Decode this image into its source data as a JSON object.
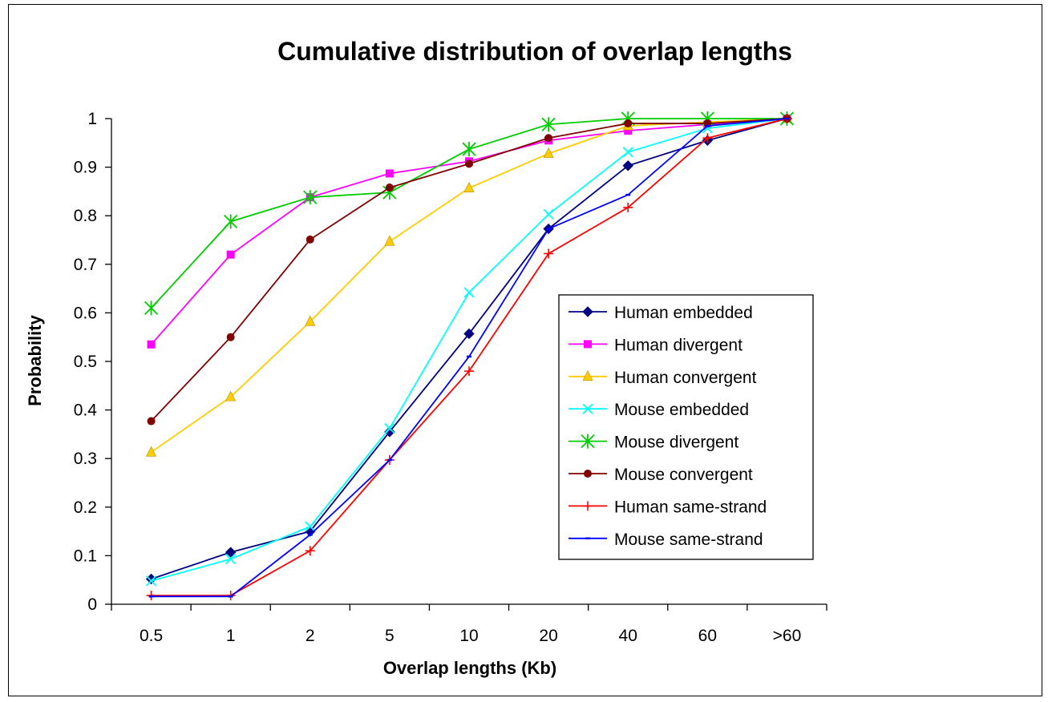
{
  "chart_data": {
    "type": "line",
    "title": "Cumulative distribution of overlap lengths",
    "xlabel": "Overlap lengths (Kb)",
    "ylabel": "Probability",
    "categories": [
      "0.5",
      "1",
      "2",
      "5",
      "10",
      "20",
      "40",
      "60",
      ">60"
    ],
    "ylim": [
      0,
      1
    ],
    "yticks": [
      "0",
      "0.1",
      "0.2",
      "0.3",
      "0.4",
      "0.5",
      "0.6",
      "0.7",
      "0.8",
      "0.9",
      "1"
    ],
    "grid": false,
    "legend_position": "right",
    "series": [
      {
        "name": "Human embedded",
        "color": "#000080",
        "marker": "diamond",
        "values": [
          0.052,
          0.107,
          0.15,
          0.355,
          0.557,
          0.773,
          0.903,
          0.955,
          1.0
        ]
      },
      {
        "name": "Human divergent",
        "color": "#ff00ff",
        "marker": "square",
        "values": [
          0.535,
          0.72,
          0.838,
          0.887,
          0.912,
          0.955,
          0.975,
          0.988,
          1.0
        ]
      },
      {
        "name": "Human convergent",
        "color": "#ffcc00",
        "marker": "triangle",
        "values": [
          0.313,
          0.427,
          0.582,
          0.747,
          0.857,
          0.928,
          0.985,
          0.993,
          1.0
        ]
      },
      {
        "name": "Mouse embedded",
        "color": "#00ffff",
        "marker": "x",
        "values": [
          0.048,
          0.093,
          0.16,
          0.362,
          0.642,
          0.803,
          0.931,
          0.98,
          1.0
        ]
      },
      {
        "name": "Mouse divergent",
        "color": "#00cc00",
        "marker": "star",
        "values": [
          0.61,
          0.788,
          0.838,
          0.848,
          0.937,
          0.988,
          1.0,
          1.0,
          1.0
        ]
      },
      {
        "name": "Mouse convergent",
        "color": "#800000",
        "marker": "circle",
        "values": [
          0.377,
          0.55,
          0.751,
          0.858,
          0.907,
          0.96,
          0.99,
          0.99,
          1.0
        ]
      },
      {
        "name": "Human same-strand",
        "color": "#ff0000",
        "marker": "plus",
        "values": [
          0.018,
          0.018,
          0.11,
          0.297,
          0.48,
          0.722,
          0.817,
          0.96,
          1.0
        ]
      },
      {
        "name": "Mouse same-strand",
        "color": "#0000ff",
        "marker": "dash",
        "values": [
          0.016,
          0.016,
          0.143,
          0.297,
          0.51,
          0.773,
          0.843,
          0.985,
          1.0
        ]
      }
    ]
  }
}
